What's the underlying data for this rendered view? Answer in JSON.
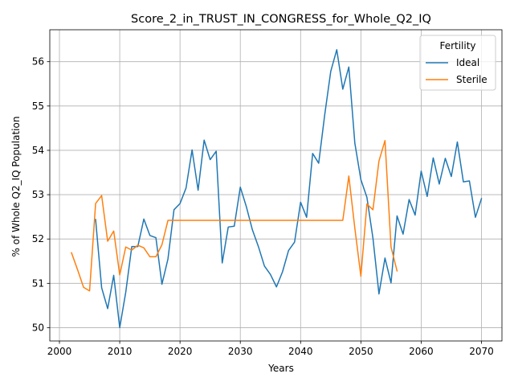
{
  "chart_data": {
    "type": "line",
    "title": "Score_2_in_TRUST_IN_CONGRESS_for_Whole_Q2_IQ",
    "xlabel": "Years",
    "ylabel": "% of Whole Q2_IQ Population",
    "xlim": [
      1998.4,
      2073.4
    ],
    "ylim": [
      49.7,
      56.72
    ],
    "xticks": [
      2000,
      2010,
      2020,
      2030,
      2040,
      2050,
      2060,
      2070
    ],
    "yticks": [
      50,
      51,
      52,
      53,
      54,
      55,
      56
    ],
    "grid": true,
    "legend": {
      "title": "Fertility",
      "placement": "top-right"
    },
    "series": [
      {
        "name": "Ideal",
        "color": "#1f77b4",
        "x": [
          2006,
          2007,
          2008,
          2009,
          2010,
          2011,
          2012,
          2013,
          2014,
          2015,
          2016,
          2017,
          2018,
          2019,
          2020,
          2021,
          2022,
          2023,
          2024,
          2025,
          2026,
          2027,
          2028,
          2029,
          2030,
          2031,
          2032,
          2033,
          2034,
          2035,
          2036,
          2037,
          2038,
          2039,
          2040,
          2041,
          2042,
          2043,
          2044,
          2045,
          2046,
          2047,
          2048,
          2049,
          2050,
          2051,
          2052,
          2053,
          2054,
          2055,
          2056,
          2057,
          2058,
          2059,
          2060,
          2061,
          2062,
          2063,
          2064,
          2065,
          2066,
          2067,
          2068,
          2069,
          2070
        ],
        "y": [
          52.44,
          50.9,
          50.43,
          51.18,
          50.0,
          50.8,
          51.83,
          51.83,
          52.45,
          52.08,
          52.03,
          50.98,
          51.55,
          52.66,
          52.8,
          53.15,
          54.01,
          53.1,
          54.23,
          53.79,
          53.98,
          51.46,
          52.27,
          52.29,
          53.17,
          52.73,
          52.21,
          51.83,
          51.39,
          51.2,
          50.92,
          51.26,
          51.74,
          51.93,
          52.83,
          52.49,
          53.93,
          53.71,
          54.8,
          55.78,
          56.27,
          55.38,
          55.88,
          54.16,
          53.34,
          52.94,
          52.02,
          50.76,
          51.57,
          51.01,
          52.52,
          52.11,
          52.89,
          52.54,
          53.53,
          52.96,
          53.83,
          53.24,
          53.82,
          53.41,
          54.19,
          53.29,
          53.31,
          52.49,
          52.91
        ]
      },
      {
        "name": "Sterile",
        "color": "#ff7f0e",
        "x": [
          2002,
          2003,
          2004,
          2005,
          2006,
          2007,
          2008,
          2009,
          2010,
          2011,
          2012,
          2013,
          2014,
          2015,
          2016,
          2017,
          2018,
          2019,
          2020,
          2021,
          2022,
          2023,
          2024,
          2025,
          2026,
          2027,
          2028,
          2029,
          2030,
          2031,
          2032,
          2033,
          2034,
          2035,
          2036,
          2037,
          2038,
          2039,
          2040,
          2041,
          2042,
          2043,
          2044,
          2045,
          2046,
          2047,
          2048,
          2049,
          2050,
          2051,
          2052,
          2053,
          2054,
          2055,
          2056
        ],
        "y": [
          51.69,
          51.31,
          50.91,
          50.83,
          52.8,
          52.98,
          51.95,
          52.18,
          51.19,
          51.82,
          51.75,
          51.86,
          51.8,
          51.6,
          51.6,
          51.87,
          52.42,
          52.42,
          52.42,
          52.42,
          52.42,
          52.42,
          52.42,
          52.42,
          52.42,
          52.42,
          52.42,
          52.42,
          52.42,
          52.42,
          52.42,
          52.42,
          52.42,
          52.42,
          52.42,
          52.42,
          52.42,
          52.42,
          52.42,
          52.42,
          52.42,
          52.42,
          52.42,
          52.42,
          52.42,
          52.42,
          53.42,
          52.24,
          51.16,
          52.79,
          52.66,
          53.76,
          54.22,
          51.82,
          51.28
        ]
      }
    ]
  }
}
